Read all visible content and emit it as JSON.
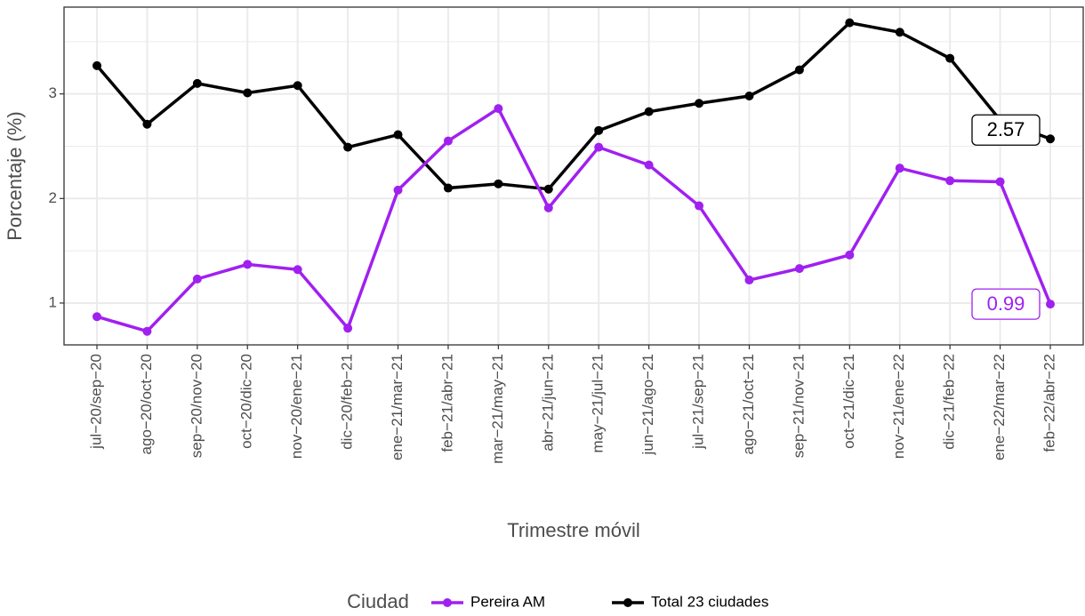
{
  "chart_data": {
    "type": "line",
    "x_label": "Trimestre móvil",
    "y_label": "Porcentaje (%)",
    "legend_title": "Ciudad",
    "legend_position": "bottom",
    "grid": true,
    "categories": [
      "jul−20/sep−20",
      "ago−20/oct−20",
      "sep−20/nov−20",
      "oct−20/dic−20",
      "nov−20/ene−21",
      "dic−20/feb−21",
      "ene−21/mar−21",
      "feb−21/abr−21",
      "mar−21/may−21",
      "abr−21/jun−21",
      "may−21/jul−21",
      "jun−21/ago−21",
      "jul−21/sep−21",
      "ago−21/oct−21",
      "sep−21/nov−21",
      "oct−21/dic−21",
      "nov−21/ene−22",
      "dic−21/feb−22",
      "ene−22/mar−22",
      "feb−22/abr−22"
    ],
    "series": [
      {
        "name": "Pereira AM",
        "color": "#a020f0",
        "values": [
          0.87,
          0.73,
          1.23,
          1.37,
          1.32,
          0.76,
          2.08,
          2.55,
          2.86,
          1.91,
          2.49,
          2.32,
          1.93,
          1.22,
          1.33,
          1.46,
          2.29,
          2.17,
          2.16,
          0.99
        ]
      },
      {
        "name": "Total 23 ciudades",
        "color": "#000000",
        "values": [
          3.27,
          2.71,
          3.1,
          3.01,
          3.08,
          2.49,
          2.61,
          2.1,
          2.14,
          2.09,
          2.65,
          2.83,
          2.91,
          2.98,
          3.23,
          3.68,
          3.59,
          3.34,
          2.75,
          2.57
        ]
      }
    ],
    "ylim": [
      0.6,
      3.83
    ],
    "yticks": [
      1,
      2,
      3
    ]
  }
}
